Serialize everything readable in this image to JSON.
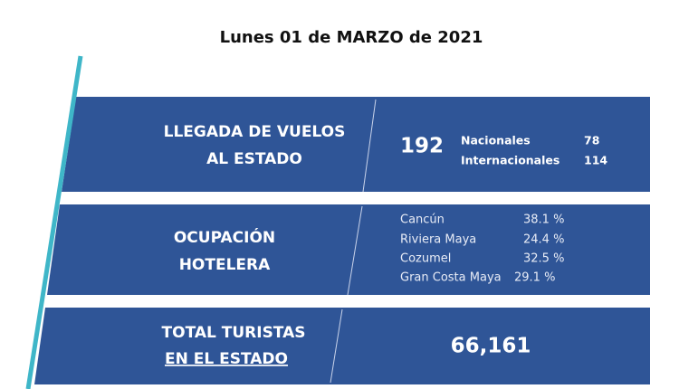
{
  "header": {
    "title": "Lunes 01 de MARZO de 2021"
  },
  "panels": [
    {
      "label_lines": [
        "LLEGADA DE VUELOS",
        "AL ESTADO"
      ],
      "total": "192",
      "items": [
        {
          "name": "Nacionales",
          "value": "78"
        },
        {
          "name": "Internacionales",
          "value": "114"
        }
      ]
    },
    {
      "label_lines": [
        "OCUPACIÓN",
        "HOTELERA"
      ],
      "items": [
        {
          "name": "Cancún",
          "value": "38.1 %"
        },
        {
          "name": "Riviera Maya",
          "value": "24.4 %"
        },
        {
          "name": "Cozumel",
          "value": "32.5 %"
        },
        {
          "name": "Gran Costa Maya",
          "value": "29.1 %"
        }
      ]
    },
    {
      "label_lines": [
        "TOTAL TURISTAS",
        "EN EL ESTADO"
      ],
      "total": "66,161"
    }
  ]
}
